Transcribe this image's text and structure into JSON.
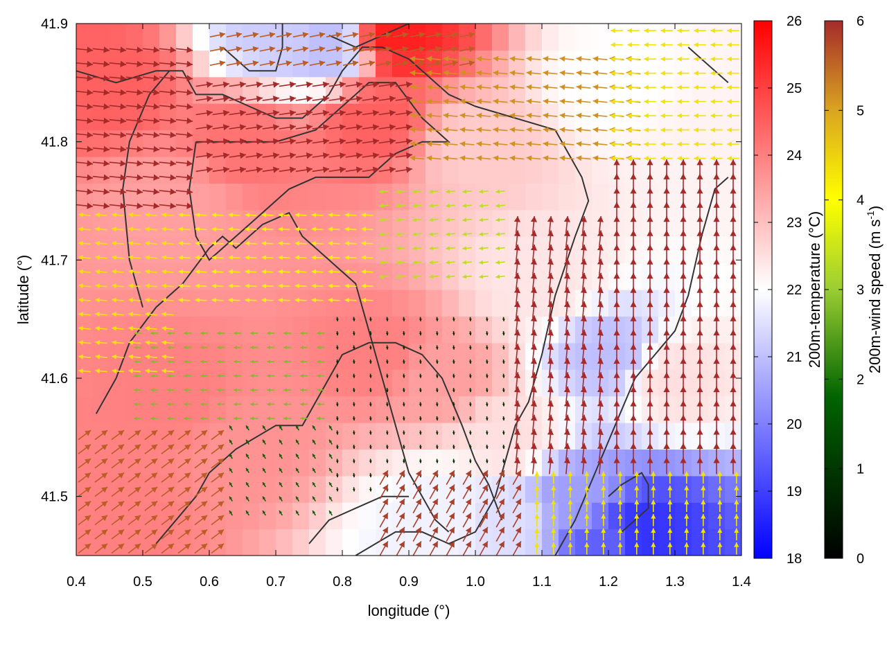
{
  "chart_data": {
    "type": "heatmap",
    "title": "",
    "xlabel": "longitude (°)",
    "ylabel": "latitude (°)",
    "xlim": [
      0.4,
      1.4
    ],
    "ylim": [
      41.45,
      41.9
    ],
    "x_ticks": [
      "0.4",
      "0.5",
      "0.6",
      "0.7",
      "0.8",
      "0.9",
      "1.0",
      "1.1",
      "1.2",
      "1.3",
      "1.4"
    ],
    "y_ticks": [
      "41.5",
      "41.6",
      "41.7",
      "41.8",
      "41.9"
    ],
    "grid": false,
    "temperature_colorbar": {
      "label": "200m-temperature (°C)",
      "range": [
        18,
        26
      ],
      "ticks": [
        "18",
        "19",
        "20",
        "21",
        "22",
        "23",
        "24",
        "25",
        "26"
      ],
      "colors": [
        "#0000ff",
        "#ffffff",
        "#ff0000"
      ]
    },
    "wind_colorbar": {
      "label_prefix": "200m-wind speed (m s",
      "label_exp": "-1",
      "label_suffix": ")",
      "range": [
        0,
        6
      ],
      "ticks": [
        "0",
        "1",
        "2",
        "3",
        "4",
        "5",
        "6"
      ],
      "colors": [
        "#000000",
        "#006400",
        "#9acd32",
        "#ffff00",
        "#daa520",
        "#a52a2a"
      ]
    },
    "temperature_field": [
      {
        "lon": 0.45,
        "lat": 41.85,
        "t": 24.5
      },
      {
        "lon": 0.55,
        "lat": 41.75,
        "t": 23.5
      },
      {
        "lon": 0.65,
        "lat": 41.8,
        "t": 24.2
      },
      {
        "lon": 0.85,
        "lat": 41.82,
        "t": 24.5
      },
      {
        "lon": 0.88,
        "lat": 41.89,
        "t": 25.5
      },
      {
        "lon": 0.55,
        "lat": 41.58,
        "t": 24.0
      },
      {
        "lon": 0.65,
        "lat": 41.55,
        "t": 23.7
      },
      {
        "lon": 0.85,
        "lat": 41.62,
        "t": 24.0
      },
      {
        "lon": 0.95,
        "lat": 41.6,
        "t": 23.5
      },
      {
        "lon": 1.05,
        "lat": 41.55,
        "t": 22.5
      },
      {
        "lon": 1.0,
        "lat": 41.8,
        "t": 22.8
      },
      {
        "lon": 1.1,
        "lat": 41.68,
        "t": 22.4
      },
      {
        "lon": 1.2,
        "lat": 41.85,
        "t": 22.0
      },
      {
        "lon": 1.3,
        "lat": 41.6,
        "t": 22.5
      },
      {
        "lon": 1.2,
        "lat": 41.62,
        "t": 21.0
      },
      {
        "lon": 1.15,
        "lat": 41.5,
        "t": 20.5
      },
      {
        "lon": 1.25,
        "lat": 41.47,
        "t": 18.8
      },
      {
        "lon": 1.2,
        "lat": 41.46,
        "t": 19.5
      },
      {
        "lon": 0.7,
        "lat": 41.89,
        "t": 21.2
      },
      {
        "lon": 0.78,
        "lat": 41.88,
        "t": 21.0
      },
      {
        "lon": 1.05,
        "lat": 41.48,
        "t": 21.5
      },
      {
        "lon": 0.95,
        "lat": 41.48,
        "t": 21.8
      },
      {
        "lon": 0.45,
        "lat": 41.48,
        "t": 24.0
      },
      {
        "lon": 1.35,
        "lat": 41.8,
        "t": 22.2
      }
    ],
    "wind_regions": [
      {
        "lon": [
          0.4,
          0.58
        ],
        "lat": [
          41.74,
          41.88
        ],
        "speed": 6.0,
        "u": 1.0,
        "v": -0.1
      },
      {
        "lon": [
          0.58,
          0.9
        ],
        "lat": [
          41.77,
          41.86
        ],
        "speed": 6.0,
        "u": 1.0,
        "v": 0.15
      },
      {
        "lon": [
          0.6,
          1.0
        ],
        "lat": [
          41.86,
          41.9
        ],
        "speed": 5.5,
        "u": 1.0,
        "v": 0.2
      },
      {
        "lon": [
          0.9,
          1.25
        ],
        "lat": [
          41.78,
          41.88
        ],
        "speed": 5.0,
        "u": -1.0,
        "v": 0.1
      },
      {
        "lon": [
          1.2,
          1.4
        ],
        "lat": [
          41.78,
          41.9
        ],
        "speed": 4.0,
        "u": -1.0,
        "v": 0.0
      },
      {
        "lon": [
          0.4,
          0.55
        ],
        "lat": [
          41.6,
          41.74
        ],
        "speed": 4.0,
        "u": -1.0,
        "v": 0.1
      },
      {
        "lon": [
          0.55,
          0.85
        ],
        "lat": [
          41.66,
          41.74
        ],
        "speed": 3.8,
        "u": -1.0,
        "v": 0.05
      },
      {
        "lon": [
          0.85,
          1.05
        ],
        "lat": [
          41.68,
          41.77
        ],
        "speed": 2.8,
        "u": -1.0,
        "v": -0.1
      },
      {
        "lon": [
          0.48,
          0.78
        ],
        "lat": [
          41.56,
          41.64
        ],
        "speed": 2.2,
        "u": -1.0,
        "v": 0.0
      },
      {
        "lon": [
          0.78,
          1.05
        ],
        "lat": [
          41.5,
          41.66
        ],
        "speed": 0.6,
        "u": 0.1,
        "v": -1.0
      },
      {
        "lon": [
          0.62,
          0.8
        ],
        "lat": [
          41.48,
          41.56
        ],
        "speed": 1.2,
        "u": -0.5,
        "v": 0.8
      },
      {
        "lon": [
          0.4,
          0.62
        ],
        "lat": [
          41.45,
          41.56
        ],
        "speed": 5.5,
        "u": 0.8,
        "v": 0.6
      },
      {
        "lon": [
          0.85,
          1.08
        ],
        "lat": [
          41.45,
          41.52
        ],
        "speed": 5.8,
        "u": 0.5,
        "v": 0.9
      },
      {
        "lon": [
          1.05,
          1.2
        ],
        "lat": [
          41.52,
          41.74
        ],
        "speed": 6.0,
        "u": 0.1,
        "v": 1.0
      },
      {
        "lon": [
          1.2,
          1.4
        ],
        "lat": [
          41.52,
          41.78
        ],
        "speed": 6.0,
        "u": 0.0,
        "v": 1.0
      },
      {
        "lon": [
          1.08,
          1.4
        ],
        "lat": [
          41.45,
          41.52
        ],
        "speed": 4.0,
        "u": 0.0,
        "v": 1.0
      }
    ],
    "contours": [
      [
        [
          0.4,
          41.86
        ],
        [
          0.46,
          41.85
        ],
        [
          0.52,
          41.86
        ],
        [
          0.56,
          41.86
        ],
        [
          0.58,
          41.84
        ],
        [
          0.62,
          41.84
        ],
        [
          0.66,
          41.83
        ],
        [
          0.7,
          41.82
        ],
        [
          0.74,
          41.82
        ],
        [
          0.76,
          41.83
        ],
        [
          0.78,
          41.84
        ],
        [
          0.8,
          41.86
        ],
        [
          0.83,
          41.88
        ],
        [
          0.86,
          41.88
        ],
        [
          0.9,
          41.87
        ],
        [
          0.96,
          41.84
        ],
        [
          1.0,
          41.83
        ],
        [
          1.06,
          41.82
        ],
        [
          1.12,
          41.81
        ],
        [
          1.14,
          41.79
        ],
        [
          1.16,
          41.77
        ],
        [
          1.17,
          41.75
        ],
        [
          1.15,
          41.72
        ],
        [
          1.12,
          41.67
        ],
        [
          1.1,
          41.62
        ],
        [
          1.08,
          41.58
        ],
        [
          1.06,
          41.56
        ],
        [
          1.03,
          41.5
        ],
        [
          1.0,
          41.47
        ],
        [
          0.96,
          41.46
        ],
        [
          0.92,
          41.47
        ],
        [
          0.88,
          41.47
        ],
        [
          0.85,
          41.46
        ],
        [
          0.82,
          41.45
        ]
      ],
      [
        [
          0.58,
          41.8
        ],
        [
          0.6,
          41.8
        ],
        [
          0.64,
          41.8
        ],
        [
          0.7,
          41.8
        ],
        [
          0.76,
          41.81
        ],
        [
          0.8,
          41.83
        ],
        [
          0.84,
          41.85
        ],
        [
          0.88,
          41.85
        ],
        [
          0.92,
          41.82
        ],
        [
          0.96,
          41.8
        ],
        [
          0.92,
          41.8
        ],
        [
          0.88,
          41.79
        ],
        [
          0.86,
          41.78
        ],
        [
          0.84,
          41.77
        ],
        [
          0.8,
          41.77
        ],
        [
          0.76,
          41.77
        ],
        [
          0.72,
          41.76
        ],
        [
          0.68,
          41.74
        ],
        [
          0.64,
          41.72
        ],
        [
          0.6,
          41.7
        ],
        [
          0.58,
          41.72
        ],
        [
          0.57,
          41.76
        ],
        [
          0.58,
          41.8
        ]
      ],
      [
        [
          0.5,
          41.66
        ],
        [
          0.48,
          41.7
        ],
        [
          0.47,
          41.76
        ],
        [
          0.48,
          41.8
        ],
        [
          0.51,
          41.84
        ],
        [
          0.54,
          41.86
        ]
      ],
      [
        [
          0.43,
          41.57
        ],
        [
          0.46,
          41.6
        ],
        [
          0.48,
          41.63
        ],
        [
          0.52,
          41.66
        ],
        [
          0.56,
          41.68
        ],
        [
          0.6,
          41.71
        ],
        [
          0.62,
          41.72
        ],
        [
          0.64,
          41.71
        ],
        [
          0.68,
          41.73
        ],
        [
          0.72,
          41.74
        ],
        [
          0.74,
          41.72
        ],
        [
          0.78,
          41.7
        ],
        [
          0.82,
          41.68
        ],
        [
          0.84,
          41.64
        ],
        [
          0.86,
          41.6
        ],
        [
          0.88,
          41.56
        ],
        [
          0.9,
          41.52
        ],
        [
          0.92,
          41.5
        ],
        [
          0.94,
          41.48
        ],
        [
          0.96,
          41.47
        ]
      ],
      [
        [
          0.52,
          41.46
        ],
        [
          0.55,
          41.48
        ],
        [
          0.58,
          41.5
        ],
        [
          0.6,
          41.52
        ],
        [
          0.64,
          41.54
        ],
        [
          0.7,
          41.56
        ],
        [
          0.74,
          41.56
        ],
        [
          0.76,
          41.58
        ],
        [
          0.78,
          41.6
        ],
        [
          0.8,
          41.62
        ],
        [
          0.84,
          41.63
        ],
        [
          0.88,
          41.63
        ],
        [
          0.92,
          41.62
        ],
        [
          0.95,
          41.6
        ],
        [
          0.98,
          41.56
        ],
        [
          1.0,
          41.53
        ],
        [
          1.02,
          41.51
        ],
        [
          1.04,
          41.48
        ]
      ],
      [
        [
          1.12,
          41.45
        ],
        [
          1.15,
          41.48
        ],
        [
          1.18,
          41.52
        ],
        [
          1.21,
          41.56
        ],
        [
          1.24,
          41.6
        ],
        [
          1.27,
          41.62
        ],
        [
          1.3,
          41.64
        ],
        [
          1.32,
          41.67
        ],
        [
          1.34,
          41.72
        ],
        [
          1.36,
          41.76
        ],
        [
          1.38,
          41.77
        ]
      ],
      [
        [
          0.75,
          41.46
        ],
        [
          0.78,
          41.48
        ],
        [
          0.82,
          41.49
        ],
        [
          0.86,
          41.5
        ],
        [
          0.9,
          41.5
        ]
      ],
      [
        [
          0.62,
          41.88
        ],
        [
          0.64,
          41.87
        ],
        [
          0.66,
          41.86
        ],
        [
          0.68,
          41.86
        ],
        [
          0.7,
          41.86
        ],
        [
          0.71,
          41.88
        ],
        [
          0.71,
          41.9
        ]
      ],
      [
        [
          1.22,
          41.47
        ],
        [
          1.24,
          41.48
        ],
        [
          1.26,
          41.49
        ],
        [
          1.26,
          41.51
        ],
        [
          1.25,
          41.52
        ],
        [
          1.22,
          41.51
        ],
        [
          1.2,
          41.5
        ]
      ],
      [
        [
          1.32,
          41.88
        ],
        [
          1.34,
          41.87
        ],
        [
          1.36,
          41.86
        ],
        [
          1.38,
          41.85
        ]
      ],
      [
        [
          0.78,
          41.89
        ],
        [
          0.82,
          41.88
        ],
        [
          0.86,
          41.89
        ],
        [
          0.9,
          41.9
        ]
      ]
    ]
  }
}
